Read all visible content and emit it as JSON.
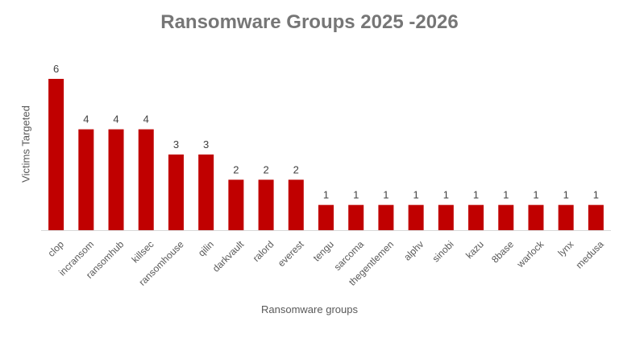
{
  "chart_data": {
    "type": "bar",
    "title": "Ransomware Groups 2025 -2026",
    "xlabel": "Ransomware groups",
    "ylabel": "Victims Targeted",
    "categories": [
      "clop",
      "incransom",
      "ransomhub",
      "killsec",
      "ransomhouse",
      "qilin",
      "darkvault",
      "ralord",
      "everest",
      "tengu",
      "sarcoma",
      "thegentlemen",
      "alphv",
      "sinobi",
      "kazu",
      "8base",
      "warlock",
      "lynx",
      "medusa"
    ],
    "values": [
      6,
      4,
      4,
      4,
      3,
      3,
      2,
      2,
      2,
      1,
      1,
      1,
      1,
      1,
      1,
      1,
      1,
      1,
      1
    ],
    "ylim": [
      0,
      6
    ],
    "grid": false,
    "legend": "none",
    "data_labels": true,
    "bar_color": "#C00000"
  }
}
